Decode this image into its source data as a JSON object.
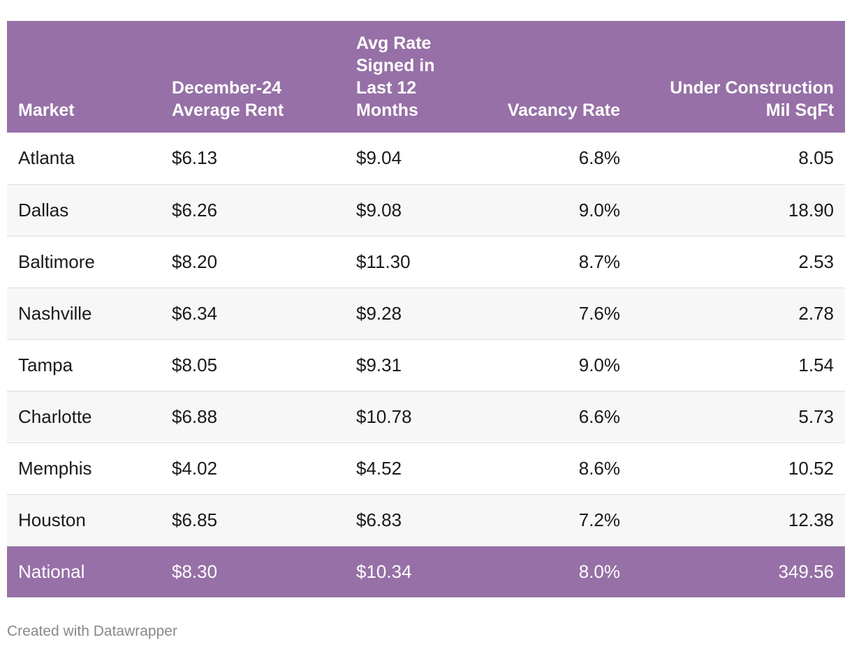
{
  "colors": {
    "header_bg": "#9670a6",
    "header_text": "#ffffff",
    "row_alt_bg": "#f7f7f7",
    "footer_text": "#888888"
  },
  "chart_data": {
    "type": "table",
    "columns": [
      {
        "label": "Market",
        "align": "left"
      },
      {
        "label": "December-24 Average Rent",
        "align": "left"
      },
      {
        "label": "Avg Rate Signed in Last 12 Months",
        "align": "left"
      },
      {
        "label": "Vacancy Rate",
        "align": "right"
      },
      {
        "label": "Under Construction Mil SqFt",
        "align": "right"
      }
    ],
    "rows": [
      [
        "Atlanta",
        "$6.13",
        "$9.04",
        "6.8%",
        "8.05"
      ],
      [
        "Dallas",
        "$6.26",
        "$9.08",
        "9.0%",
        "18.90"
      ],
      [
        "Baltimore",
        "$8.20",
        "$11.30",
        "8.7%",
        "2.53"
      ],
      [
        "Nashville",
        "$6.34",
        "$9.28",
        "7.6%",
        "2.78"
      ],
      [
        "Tampa",
        "$8.05",
        "$9.31",
        "9.0%",
        "1.54"
      ],
      [
        "Charlotte",
        "$6.88",
        "$10.78",
        "6.6%",
        "5.73"
      ],
      [
        "Memphis",
        "$4.02",
        "$4.52",
        "8.6%",
        "10.52"
      ],
      [
        "Houston",
        "$6.85",
        "$6.83",
        "7.2%",
        "12.38"
      ]
    ],
    "total_row": [
      "National",
      "$8.30",
      "$10.34",
      "8.0%",
      "349.56"
    ]
  },
  "footer": {
    "credit": "Created with Datawrapper"
  }
}
